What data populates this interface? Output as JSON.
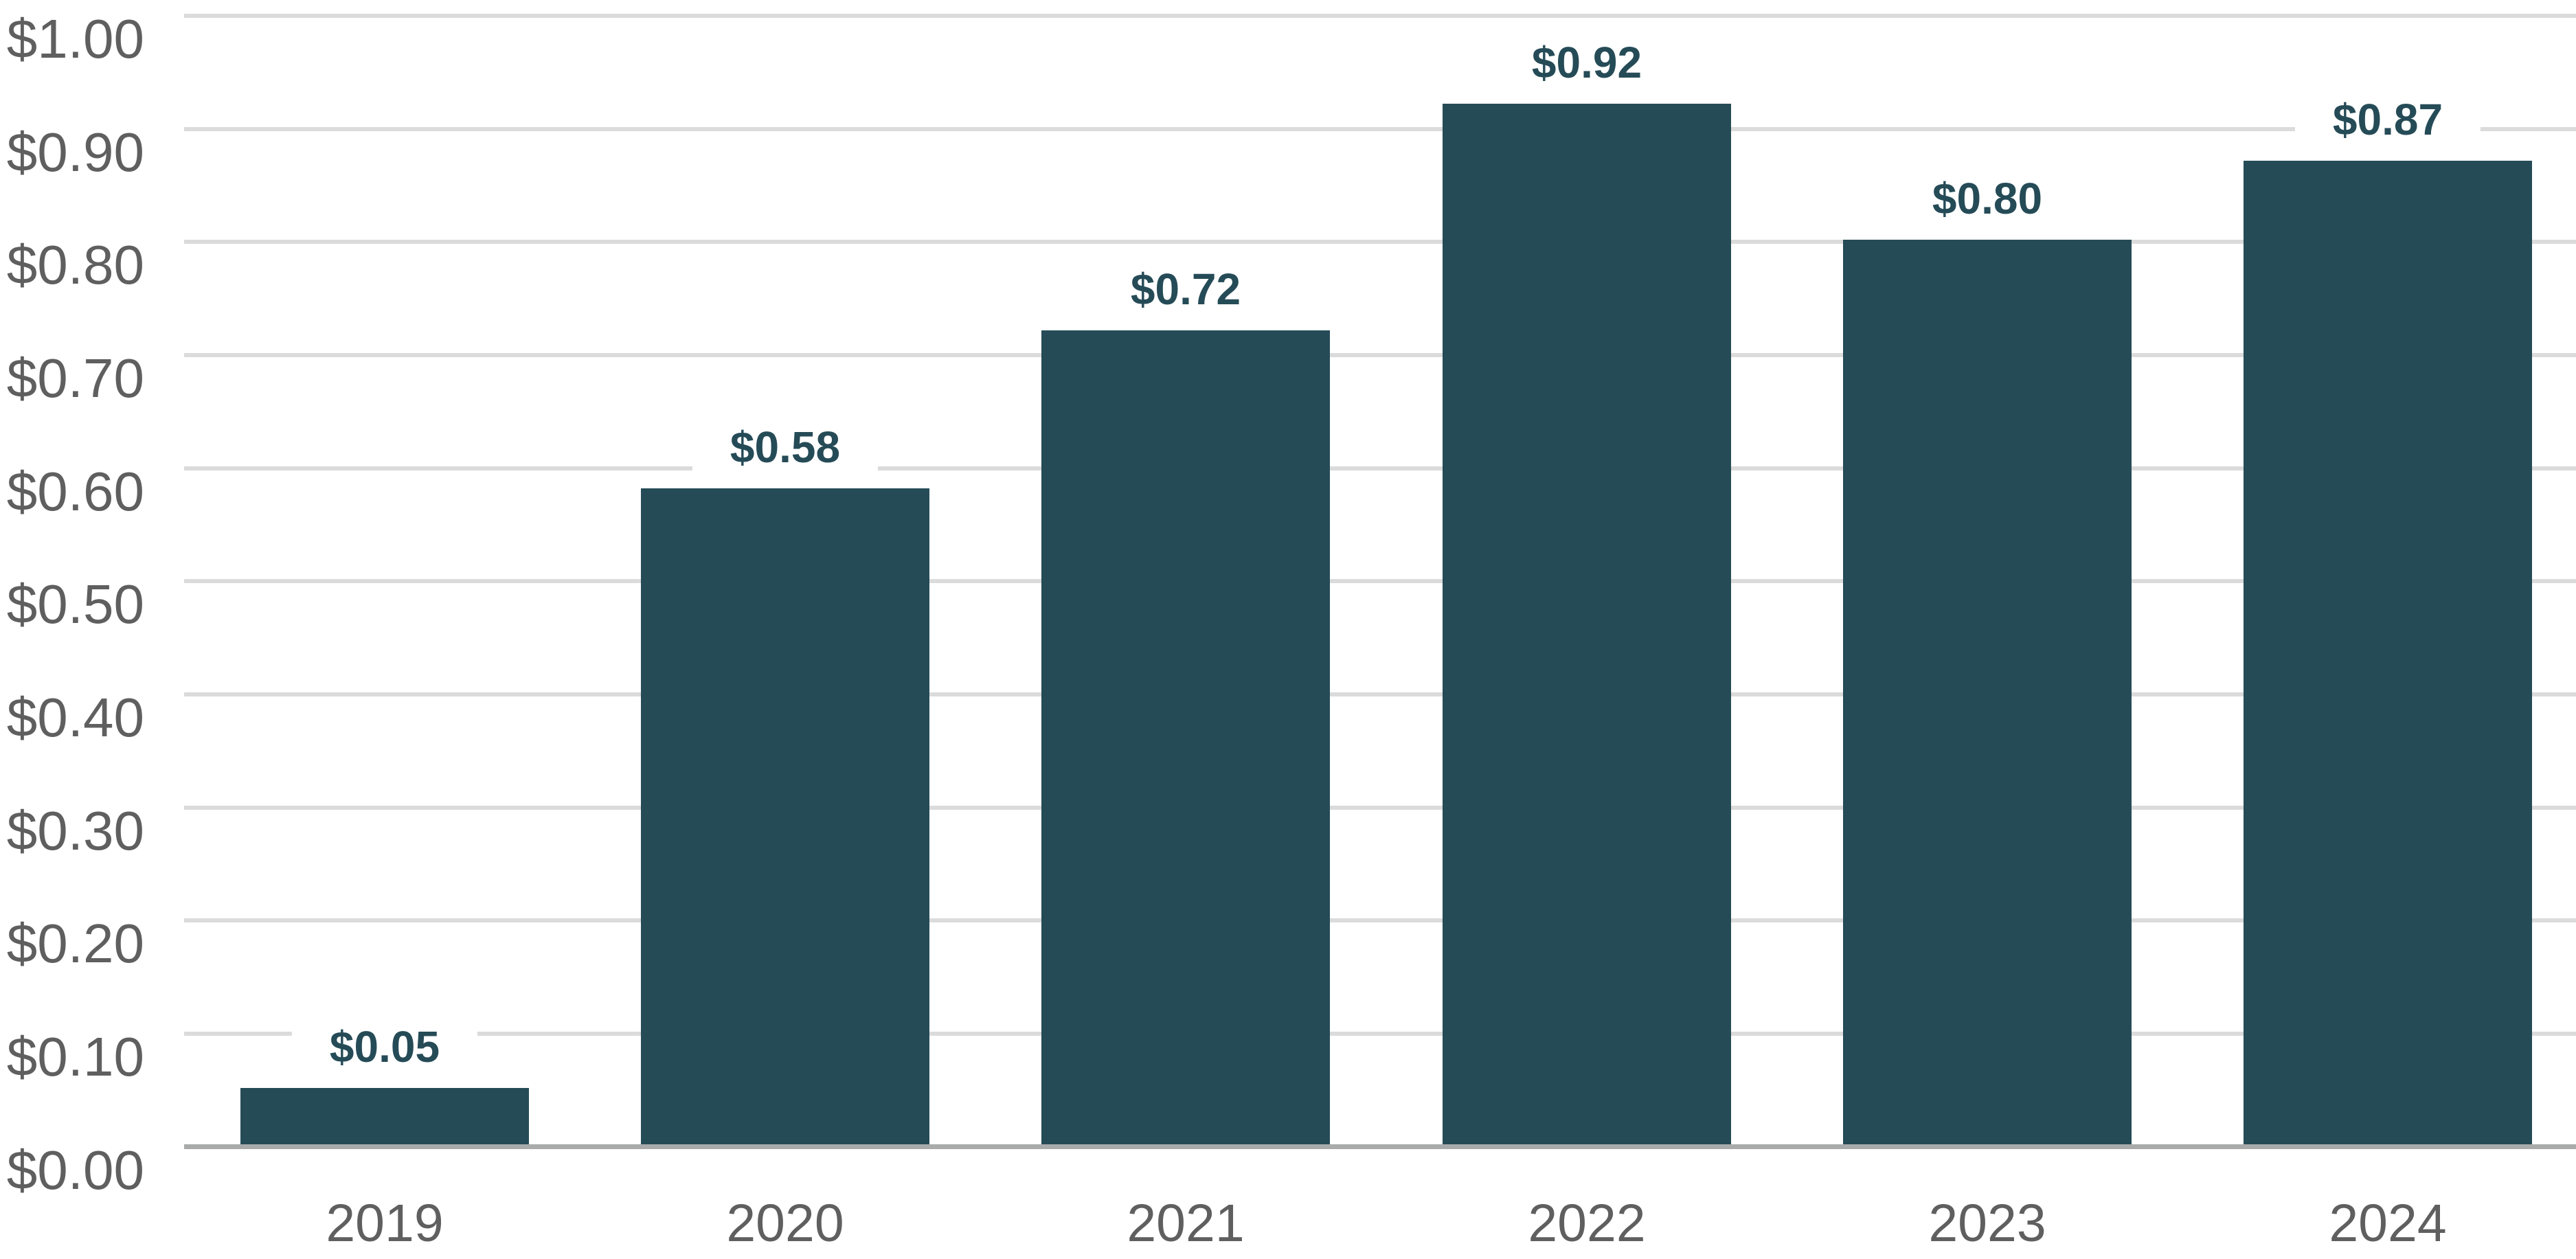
{
  "chart_data": {
    "type": "bar",
    "title": "",
    "categories": [
      "2019",
      "2020",
      "2021",
      "2022",
      "2023",
      "2024"
    ],
    "values": [
      0.05,
      0.58,
      0.72,
      0.92,
      0.8,
      0.87
    ],
    "value_labels": [
      "$0.05",
      "$0.58",
      "$0.72",
      "$0.92",
      "$0.80",
      "$0.87"
    ],
    "y_ticks": [
      {
        "value": 0.0,
        "label": "$0.00"
      },
      {
        "value": 0.1,
        "label": "$0.10"
      },
      {
        "value": 0.2,
        "label": "$0.20"
      },
      {
        "value": 0.3,
        "label": "$0.30"
      },
      {
        "value": 0.4,
        "label": "$0.40"
      },
      {
        "value": 0.5,
        "label": "$0.50"
      },
      {
        "value": 0.6,
        "label": "$0.60"
      },
      {
        "value": 0.7,
        "label": "$0.70"
      },
      {
        "value": 0.8,
        "label": "$0.80"
      },
      {
        "value": 0.9,
        "label": "$0.90"
      },
      {
        "value": 1.0,
        "label": "$1.00"
      }
    ],
    "ylim": [
      0,
      1
    ],
    "xlabel": "",
    "ylabel": "",
    "grid": "horizontal",
    "legend_position": "none",
    "colors": {
      "bar": "#254B57",
      "value_label_text": "#254B57",
      "axis_text": "#5F5F5F",
      "gridline": "#DBDBDB",
      "baseline": "#A9ABAB",
      "background": "#FFFFFF"
    }
  }
}
